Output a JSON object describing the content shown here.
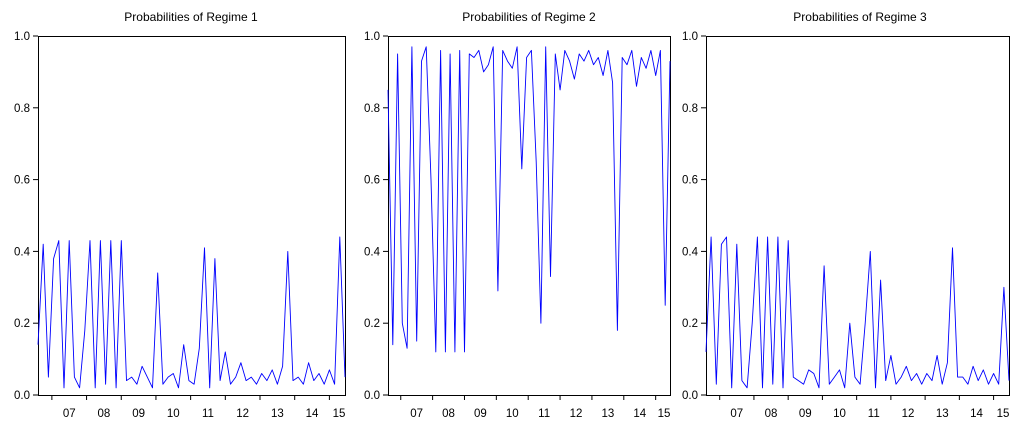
{
  "chart_data": [
    {
      "type": "line",
      "title": "Probabilities of Regime 1",
      "xlabel": "",
      "ylabel": "",
      "x_range": [
        2006.6,
        2015.45
      ],
      "ylim": [
        0.0,
        1.0
      ],
      "yticks": [
        0.0,
        0.2,
        0.4,
        0.6,
        0.8,
        1.0
      ],
      "ytick_labels": [
        "0.0",
        "0.2",
        "0.4",
        "0.6",
        "0.8",
        "1.0"
      ],
      "xticks": [
        2007,
        2008,
        2009,
        2010,
        2011,
        2012,
        2013,
        2014,
        2015
      ],
      "xtick_labels": [
        "07",
        "08",
        "09",
        "10",
        "11",
        "12",
        "13",
        "14",
        "15"
      ],
      "grid": false,
      "color": "#0000ff",
      "series": [
        {
          "x": [
            2006.6,
            2006.75,
            2006.9,
            2007.05,
            2007.2,
            2007.35,
            2007.5,
            2007.65,
            2007.8,
            2007.95,
            2008.1,
            2008.25,
            2008.4,
            2008.55,
            2008.7,
            2008.85,
            2009.0,
            2009.15,
            2009.3,
            2009.45,
            2009.6,
            2009.75,
            2009.9,
            2010.05,
            2010.2,
            2010.35,
            2010.5,
            2010.65,
            2010.8,
            2010.95,
            2011.1,
            2011.25,
            2011.4,
            2011.55,
            2011.7,
            2011.85,
            2012.0,
            2012.15,
            2012.3,
            2012.45,
            2012.6,
            2012.75,
            2012.9,
            2013.05,
            2013.2,
            2013.35,
            2013.5,
            2013.65,
            2013.8,
            2013.95,
            2014.1,
            2014.25,
            2014.4,
            2014.55,
            2014.7,
            2014.85,
            2015.0,
            2015.15,
            2015.3,
            2015.45
          ],
          "values": [
            0.14,
            0.42,
            0.05,
            0.38,
            0.43,
            0.02,
            0.43,
            0.05,
            0.02,
            0.18,
            0.43,
            0.02,
            0.43,
            0.03,
            0.43,
            0.02,
            0.43,
            0.04,
            0.05,
            0.03,
            0.08,
            0.05,
            0.02,
            0.34,
            0.03,
            0.05,
            0.06,
            0.02,
            0.14,
            0.04,
            0.03,
            0.13,
            0.41,
            0.02,
            0.38,
            0.04,
            0.12,
            0.03,
            0.05,
            0.09,
            0.04,
            0.05,
            0.03,
            0.06,
            0.04,
            0.07,
            0.03,
            0.08,
            0.4,
            0.04,
            0.05,
            0.03,
            0.09,
            0.04,
            0.06,
            0.03,
            0.07,
            0.03,
            0.44,
            0.05
          ]
        }
      ]
    },
    {
      "type": "line",
      "title": "Probabilities of Regime 2",
      "xlabel": "",
      "ylabel": "",
      "x_range": [
        2006.6,
        2015.45
      ],
      "ylim": [
        0.0,
        1.0
      ],
      "yticks": [
        0.0,
        0.2,
        0.4,
        0.6,
        0.8,
        1.0
      ],
      "ytick_labels": [
        "0.0",
        "0.2",
        "0.4",
        "0.6",
        "0.8",
        "1.0"
      ],
      "xticks": [
        2007,
        2008,
        2009,
        2010,
        2011,
        2012,
        2013,
        2014,
        2015
      ],
      "xtick_labels": [
        "07",
        "08",
        "09",
        "10",
        "11",
        "12",
        "13",
        "14",
        "15"
      ],
      "grid": false,
      "color": "#0000ff",
      "series": [
        {
          "x": [
            2006.6,
            2006.75,
            2006.9,
            2007.05,
            2007.2,
            2007.35,
            2007.5,
            2007.65,
            2007.8,
            2007.95,
            2008.1,
            2008.25,
            2008.4,
            2008.55,
            2008.7,
            2008.85,
            2009.0,
            2009.15,
            2009.3,
            2009.45,
            2009.6,
            2009.75,
            2009.9,
            2010.05,
            2010.2,
            2010.35,
            2010.5,
            2010.65,
            2010.8,
            2010.95,
            2011.1,
            2011.25,
            2011.4,
            2011.55,
            2011.7,
            2011.85,
            2012.0,
            2012.15,
            2012.3,
            2012.45,
            2012.6,
            2012.75,
            2012.9,
            2013.05,
            2013.2,
            2013.35,
            2013.5,
            2013.65,
            2013.8,
            2013.95,
            2014.1,
            2014.25,
            2014.4,
            2014.55,
            2014.7,
            2014.85,
            2015.0,
            2015.15,
            2015.3,
            2015.45
          ],
          "values": [
            0.85,
            0.14,
            0.95,
            0.2,
            0.13,
            0.97,
            0.15,
            0.93,
            0.97,
            0.6,
            0.12,
            0.96,
            0.12,
            0.95,
            0.12,
            0.96,
            0.12,
            0.95,
            0.94,
            0.96,
            0.9,
            0.92,
            0.97,
            0.29,
            0.96,
            0.93,
            0.91,
            0.97,
            0.63,
            0.94,
            0.96,
            0.65,
            0.2,
            0.97,
            0.33,
            0.95,
            0.85,
            0.96,
            0.93,
            0.88,
            0.95,
            0.93,
            0.96,
            0.92,
            0.94,
            0.89,
            0.96,
            0.87,
            0.18,
            0.94,
            0.92,
            0.96,
            0.86,
            0.94,
            0.91,
            0.96,
            0.89,
            0.96,
            0.25,
            0.93
          ]
        }
      ]
    },
    {
      "type": "line",
      "title": "Probabilities of Regime 3",
      "xlabel": "",
      "ylabel": "",
      "x_range": [
        2006.6,
        2015.45
      ],
      "ylim": [
        0.0,
        1.0
      ],
      "yticks": [
        0.0,
        0.2,
        0.4,
        0.6,
        0.8,
        1.0
      ],
      "ytick_labels": [
        "0.0",
        "0.2",
        "0.4",
        "0.6",
        "0.8",
        "1.0"
      ],
      "xticks": [
        2007,
        2008,
        2009,
        2010,
        2011,
        2012,
        2013,
        2014,
        2015
      ],
      "xtick_labels": [
        "07",
        "08",
        "09",
        "10",
        "11",
        "12",
        "13",
        "14",
        "15"
      ],
      "grid": false,
      "color": "#0000ff",
      "series": [
        {
          "x": [
            2006.6,
            2006.75,
            2006.9,
            2007.05,
            2007.2,
            2007.35,
            2007.5,
            2007.65,
            2007.8,
            2007.95,
            2008.1,
            2008.25,
            2008.4,
            2008.55,
            2008.7,
            2008.85,
            2009.0,
            2009.15,
            2009.3,
            2009.45,
            2009.6,
            2009.75,
            2009.9,
            2010.05,
            2010.2,
            2010.35,
            2010.5,
            2010.65,
            2010.8,
            2010.95,
            2011.1,
            2011.25,
            2011.4,
            2011.55,
            2011.7,
            2011.85,
            2012.0,
            2012.15,
            2012.3,
            2012.45,
            2012.6,
            2012.75,
            2012.9,
            2013.05,
            2013.2,
            2013.35,
            2013.5,
            2013.65,
            2013.8,
            2013.95,
            2014.1,
            2014.25,
            2014.4,
            2014.55,
            2014.7,
            2014.85,
            2015.0,
            2015.15,
            2015.3,
            2015.45
          ],
          "values": [
            0.12,
            0.44,
            0.03,
            0.42,
            0.44,
            0.02,
            0.42,
            0.04,
            0.02,
            0.2,
            0.44,
            0.02,
            0.44,
            0.03,
            0.44,
            0.02,
            0.43,
            0.05,
            0.04,
            0.03,
            0.07,
            0.06,
            0.02,
            0.36,
            0.03,
            0.05,
            0.07,
            0.02,
            0.2,
            0.05,
            0.03,
            0.2,
            0.4,
            0.02,
            0.32,
            0.04,
            0.11,
            0.03,
            0.05,
            0.08,
            0.04,
            0.06,
            0.03,
            0.06,
            0.04,
            0.11,
            0.03,
            0.09,
            0.41,
            0.05,
            0.05,
            0.03,
            0.08,
            0.04,
            0.07,
            0.03,
            0.06,
            0.03,
            0.3,
            0.04
          ]
        }
      ]
    }
  ]
}
